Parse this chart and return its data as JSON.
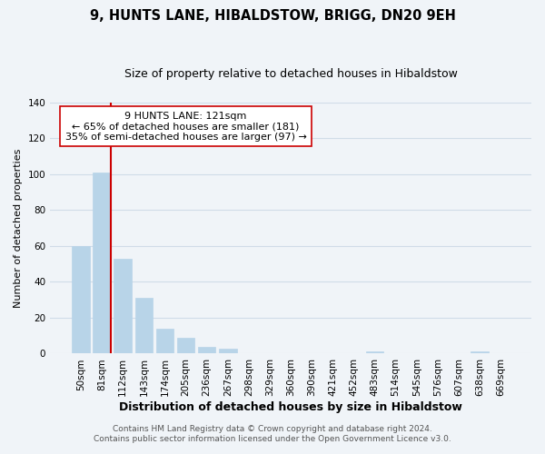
{
  "title": "9, HUNTS LANE, HIBALDSTOW, BRIGG, DN20 9EH",
  "subtitle": "Size of property relative to detached houses in Hibaldstow",
  "xlabel": "Distribution of detached houses by size in Hibaldstow",
  "ylabel": "Number of detached properties",
  "bar_labels": [
    "50sqm",
    "81sqm",
    "112sqm",
    "143sqm",
    "174sqm",
    "205sqm",
    "236sqm",
    "267sqm",
    "298sqm",
    "329sqm",
    "360sqm",
    "390sqm",
    "421sqm",
    "452sqm",
    "483sqm",
    "514sqm",
    "545sqm",
    "576sqm",
    "607sqm",
    "638sqm",
    "669sqm"
  ],
  "bar_values": [
    60,
    101,
    53,
    31,
    14,
    9,
    4,
    3,
    0,
    0,
    0,
    0,
    0,
    0,
    1,
    0,
    0,
    0,
    0,
    1,
    0
  ],
  "bar_color": "#b8d4e8",
  "bar_edge_color": "#b8d4e8",
  "vline_color": "#cc0000",
  "annotation_text": "9 HUNTS LANE: 121sqm\n← 65% of detached houses are smaller (181)\n35% of semi-detached houses are larger (97) →",
  "annotation_box_color": "white",
  "annotation_box_edge_color": "#cc0000",
  "ylim": [
    0,
    140
  ],
  "yticks": [
    0,
    20,
    40,
    60,
    80,
    100,
    120,
    140
  ],
  "footer_line1": "Contains HM Land Registry data © Crown copyright and database right 2024.",
  "footer_line2": "Contains public sector information licensed under the Open Government Licence v3.0.",
  "bg_color": "#f0f4f8",
  "grid_color": "#d0dce8",
  "title_fontsize": 10.5,
  "subtitle_fontsize": 9,
  "xlabel_fontsize": 9,
  "ylabel_fontsize": 8,
  "tick_fontsize": 7.5,
  "annotation_fontsize": 8,
  "footer_fontsize": 6.5
}
